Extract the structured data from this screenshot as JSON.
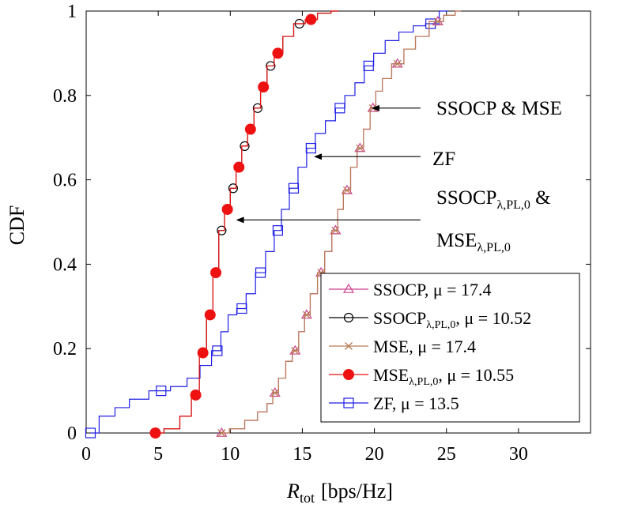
{
  "chart_data": {
    "type": "line",
    "title": "",
    "xlabel_main": "R",
    "xlabel_sub": "tot",
    "xlabel_unit": "[bps/Hz]",
    "ylabel": "CDF",
    "xlim": [
      0,
      35
    ],
    "ylim": [
      0,
      1
    ],
    "xticks": [
      0,
      5,
      10,
      15,
      20,
      25,
      30
    ],
    "yticks": [
      0,
      0.2,
      0.4,
      0.6,
      0.8,
      1
    ],
    "ytick_labels": [
      "0",
      "0.2",
      "0.4",
      "0.6",
      "0.8",
      "1"
    ],
    "grid": false,
    "legend_position": "bottom-right",
    "series": [
      {
        "name": "SSOCP",
        "mu_text": "μ = 17.4",
        "color": "#cc3f8f",
        "marker": "triangle",
        "x": [
          9.4,
          10.5,
          11.5,
          12.3,
          12.8,
          13.1,
          13.6,
          14.1,
          14.5,
          15.0,
          15.3,
          15.8,
          16.3,
          16.8,
          17.3,
          17.6,
          18.1,
          18.6,
          19.0,
          19.5,
          19.9,
          20.3,
          20.8,
          21.6,
          22.5,
          23.2,
          24.4,
          25.2,
          26.0
        ],
        "y": [
          0.0,
          0.01,
          0.03,
          0.05,
          0.07,
          0.095,
          0.13,
          0.17,
          0.195,
          0.24,
          0.28,
          0.33,
          0.38,
          0.43,
          0.48,
          0.53,
          0.575,
          0.63,
          0.675,
          0.72,
          0.77,
          0.81,
          0.84,
          0.875,
          0.91,
          0.94,
          0.975,
          0.99,
          1.0
        ],
        "marker_indices": [
          0,
          5,
          8,
          10,
          12,
          14,
          16,
          18,
          20,
          23,
          26
        ]
      },
      {
        "name": "SSOCP",
        "name_sub": "λ,PL,0",
        "mu_text": "μ = 10.52",
        "color": "#000000",
        "marker": "circle",
        "x": [
          4.8,
          6.0,
          7.0,
          7.6,
          8.1,
          8.6,
          9.0,
          9.4,
          9.8,
          10.2,
          10.6,
          11.0,
          11.4,
          11.9,
          12.3,
          12.8,
          13.3,
          14.0,
          14.8,
          15.6,
          16.5,
          17.5
        ],
        "y": [
          0.0,
          0.01,
          0.04,
          0.09,
          0.19,
          0.28,
          0.38,
          0.48,
          0.53,
          0.58,
          0.63,
          0.68,
          0.72,
          0.77,
          0.82,
          0.87,
          0.9,
          0.94,
          0.97,
          0.98,
          0.995,
          1.0
        ],
        "marker_indices": [
          5,
          7,
          9,
          11,
          13,
          15,
          18
        ]
      },
      {
        "name": "MSE",
        "mu_text": "μ = 17.4",
        "color": "#b87c56",
        "marker": "cross",
        "x": [
          9.4,
          10.5,
          11.5,
          12.3,
          12.8,
          13.1,
          13.6,
          14.1,
          14.5,
          15.0,
          15.3,
          15.8,
          16.3,
          16.8,
          17.3,
          17.6,
          18.1,
          18.6,
          19.0,
          19.5,
          19.9,
          20.3,
          20.8,
          21.6,
          22.5,
          23.2,
          24.4,
          25.2,
          26.0
        ],
        "y": [
          0.0,
          0.01,
          0.03,
          0.05,
          0.07,
          0.095,
          0.13,
          0.17,
          0.195,
          0.24,
          0.28,
          0.33,
          0.38,
          0.43,
          0.48,
          0.53,
          0.575,
          0.63,
          0.675,
          0.72,
          0.77,
          0.81,
          0.84,
          0.875,
          0.91,
          0.94,
          0.975,
          0.99,
          1.0
        ],
        "marker_indices": [
          0,
          5,
          8,
          10,
          12,
          14,
          16,
          18,
          20,
          23,
          26
        ]
      },
      {
        "name": "MSE",
        "name_sub": "λ,PL,0",
        "mu_text": "μ = 10.55",
        "color": "#ee1111",
        "marker": "filled-circle",
        "x": [
          4.8,
          6.0,
          7.0,
          7.6,
          8.1,
          8.6,
          9.0,
          9.4,
          9.8,
          10.2,
          10.6,
          11.0,
          11.4,
          11.9,
          12.3,
          12.8,
          13.3,
          14.0,
          14.8,
          15.6,
          16.5,
          17.5
        ],
        "y": [
          0.0,
          0.01,
          0.04,
          0.09,
          0.19,
          0.28,
          0.38,
          0.48,
          0.53,
          0.58,
          0.63,
          0.68,
          0.72,
          0.77,
          0.82,
          0.87,
          0.9,
          0.94,
          0.97,
          0.98,
          0.995,
          1.0
        ],
        "marker_indices": [
          0,
          3,
          4,
          5,
          6,
          8,
          10,
          12,
          14,
          16,
          19
        ]
      },
      {
        "name": "ZF",
        "mu_text": "μ = 13.5",
        "color": "#1f1fe6",
        "marker": "square",
        "x": [
          0.3,
          1.5,
          2.5,
          3.5,
          5.2,
          6.5,
          7.5,
          8.3,
          9.1,
          9.6,
          10.1,
          10.8,
          11.4,
          12.1,
          12.8,
          13.3,
          13.8,
          14.4,
          15.0,
          15.6,
          16.2,
          17.0,
          17.6,
          18.3,
          19.0,
          19.6,
          20.3,
          21.2,
          22.2,
          23.2,
          23.9,
          25.1
        ],
        "y": [
          0.0,
          0.04,
          0.06,
          0.08,
          0.1,
          0.11,
          0.13,
          0.16,
          0.195,
          0.24,
          0.28,
          0.295,
          0.33,
          0.38,
          0.43,
          0.48,
          0.53,
          0.58,
          0.63,
          0.675,
          0.71,
          0.74,
          0.77,
          0.8,
          0.83,
          0.87,
          0.9,
          0.93,
          0.95,
          0.965,
          0.97,
          1.0
        ],
        "marker_indices": [
          0,
          4,
          8,
          11,
          13,
          15,
          17,
          19,
          22,
          25,
          30
        ]
      }
    ],
    "annotations": [
      {
        "text": "SSOCP & MSE",
        "target_x": 19.8,
        "target_y": 0.77,
        "from_x": 23.2,
        "from_y": 0.77
      },
      {
        "text": "ZF",
        "target_x": 15.8,
        "target_y": 0.655,
        "from_x": 23.2,
        "from_y": 0.655
      },
      {
        "text_main": "SSOCP",
        "text_sub": "λ,PL,0",
        "text_tail": " &",
        "target_x": 10.4,
        "target_y": 0.505,
        "from_x": 23.2,
        "from_y": 0.505
      },
      {
        "text_main": "MSE",
        "text_sub": "λ,PL,0"
      }
    ]
  },
  "axes": {
    "x_var": "R",
    "x_sub": "tot",
    "x_unit": "[bps/Hz]",
    "y_label": "CDF"
  },
  "legend": [
    {
      "name": "SSOCP",
      "sub": "",
      "mu": ", μ = 17.4"
    },
    {
      "name": "SSOCP",
      "sub": "λ,PL,0",
      "mu": ", μ = 10.52"
    },
    {
      "name": "MSE",
      "sub": "",
      "mu": ", μ = 17.4"
    },
    {
      "name": "MSE",
      "sub": "λ,PL,0",
      "mu": ", μ = 10.55"
    },
    {
      "name": "ZF",
      "sub": "",
      "mu": ", μ = 13.5"
    }
  ],
  "annotation_texts": {
    "a1": "SSOCP & MSE",
    "a2": "ZF",
    "a3_main": "SSOCP",
    "a3_sub": "λ,PL,0",
    "a3_tail": " &",
    "a4_main": "MSE",
    "a4_sub": "λ,PL,0"
  }
}
